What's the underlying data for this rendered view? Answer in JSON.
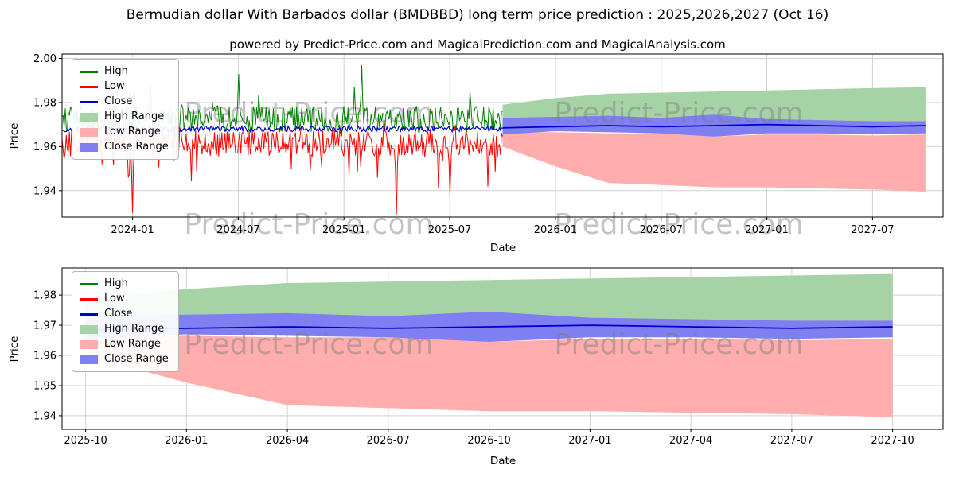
{
  "title": "Bermudian dollar With Barbados dollar (BMDBBD) long term price prediction : 2025,2026,2027 (Oct 16)",
  "subtitle": "powered by Predict-Price.com and MagicalPrediction.com and MagicalAnalysis.com",
  "watermark": "Predict-Price.com",
  "colors": {
    "high_line": "#008000",
    "low_line": "#ff0000",
    "close_line": "#0000cd",
    "high_range_fill": "#a6d3a6",
    "low_range_fill": "#ffadad",
    "close_range_fill": "#7f7ff2",
    "grid": "#d2d2d2",
    "axis": "#000000",
    "watermark_color": "rgba(125,125,125,0.45)"
  },
  "legend": {
    "items": [
      {
        "label": "High",
        "type": "line",
        "color": "#008000"
      },
      {
        "label": "Low",
        "type": "line",
        "color": "#ff0000"
      },
      {
        "label": "Close",
        "type": "line",
        "color": "#0000cd"
      },
      {
        "label": "High Range",
        "type": "patch",
        "color": "#a6d3a6"
      },
      {
        "label": "Low Range",
        "type": "patch",
        "color": "#ffadad"
      },
      {
        "label": "Close Range",
        "type": "patch",
        "color": "#7f7ff2"
      }
    ]
  },
  "chart_data": [
    {
      "type": "line",
      "title": "",
      "xlabel": "Date",
      "ylabel": "Price",
      "x_origin": "2023-09",
      "x_domain_months": [
        0,
        50
      ],
      "ylim": [
        1.928,
        2.002
      ],
      "x_ticks": [
        "2024-01",
        "2024-07",
        "2025-01",
        "2025-07",
        "2026-01",
        "2026-07",
        "2027-01",
        "2027-07"
      ],
      "y_ticks": [
        1.94,
        1.96,
        1.98,
        2.0
      ],
      "grid": true,
      "legend_position": "upper-left",
      "historical": {
        "x_start": "2023-09",
        "x_end": "2025-10",
        "samples": 420,
        "seed": 42,
        "high": {
          "mean": 1.9725,
          "noise": 0.012,
          "spike_prob": 0.07,
          "spike_amp": 0.014,
          "dip_prob": 0.04,
          "dip_amp": 0.01,
          "peaks": [
            {
              "month": "2024-02",
              "value": 1.989
            },
            {
              "month": "2024-07",
              "value": 1.993
            },
            {
              "month": "2025-02",
              "value": 1.997
            }
          ]
        },
        "low": {
          "mean": 1.9615,
          "noise": 0.012,
          "spike_prob": 0.07,
          "spike_amp": 0.018,
          "rise_prob": 0.04,
          "rise_amp": 0.008,
          "dips": [
            {
              "month": "2024-01",
              "value": 1.93
            },
            {
              "month": "2025-04",
              "value": 1.929
            },
            {
              "month": "2025-07",
              "value": 1.938
            }
          ]
        },
        "close": {
          "mean": 1.968,
          "noise": 0.0025
        }
      },
      "forecast": {
        "x": [
          "2025-10",
          "2026-01",
          "2026-04",
          "2026-07",
          "2026-10",
          "2027-01",
          "2027-04",
          "2027-07",
          "2027-10"
        ],
        "high_range": {
          "upper": [
            1.979,
            1.982,
            1.984,
            1.9845,
            1.985,
            1.9855,
            1.986,
            1.9865,
            1.987
          ],
          "lower": [
            1.9725,
            1.973,
            1.9735,
            1.973,
            1.974,
            1.9715,
            1.971,
            1.9705,
            1.971
          ]
        },
        "low_range": {
          "upper": [
            1.9665,
            1.9665,
            1.966,
            1.966,
            1.9645,
            1.9655,
            1.9655,
            1.965,
            1.9655
          ],
          "lower": [
            1.96,
            1.951,
            1.9435,
            1.9425,
            1.9415,
            1.9415,
            1.941,
            1.9405,
            1.9395
          ]
        },
        "close_range": {
          "upper": [
            1.973,
            1.9735,
            1.974,
            1.973,
            1.9745,
            1.9725,
            1.972,
            1.9715,
            1.9715
          ],
          "lower": [
            1.9655,
            1.967,
            1.9665,
            1.966,
            1.9645,
            1.966,
            1.966,
            1.9655,
            1.966
          ]
        },
        "close": [
          1.9685,
          1.969,
          1.9695,
          1.969,
          1.9695,
          1.97,
          1.9695,
          1.969,
          1.9695
        ]
      }
    },
    {
      "type": "line",
      "title": "",
      "xlabel": "Date",
      "ylabel": "Price",
      "x_origin": "2025-10",
      "x_domain_months": [
        -0.7,
        25.5
      ],
      "ylim": [
        1.9355,
        1.989
      ],
      "x_ticks": [
        "2025-10",
        "2026-01",
        "2026-04",
        "2026-07",
        "2026-10",
        "2027-01",
        "2027-04",
        "2027-07",
        "2027-10"
      ],
      "y_ticks": [
        1.94,
        1.95,
        1.96,
        1.97,
        1.98
      ],
      "grid": true,
      "legend_position": "upper-left",
      "forecast": {
        "x": [
          "2025-10",
          "2026-01",
          "2026-04",
          "2026-07",
          "2026-10",
          "2027-01",
          "2027-04",
          "2027-07",
          "2027-10"
        ],
        "high_range": {
          "upper": [
            1.979,
            1.982,
            1.984,
            1.9845,
            1.985,
            1.9855,
            1.986,
            1.9865,
            1.987
          ],
          "lower": [
            1.9725,
            1.973,
            1.9735,
            1.973,
            1.974,
            1.9715,
            1.971,
            1.9705,
            1.971
          ]
        },
        "low_range": {
          "upper": [
            1.9665,
            1.9665,
            1.966,
            1.966,
            1.9645,
            1.9655,
            1.9655,
            1.965,
            1.9655
          ],
          "lower": [
            1.96,
            1.951,
            1.9435,
            1.9425,
            1.9415,
            1.9415,
            1.941,
            1.9405,
            1.9395
          ]
        },
        "close_range": {
          "upper": [
            1.973,
            1.9735,
            1.974,
            1.973,
            1.9745,
            1.9725,
            1.972,
            1.9715,
            1.9715
          ],
          "lower": [
            1.9655,
            1.967,
            1.9665,
            1.966,
            1.9645,
            1.966,
            1.966,
            1.9655,
            1.966
          ]
        },
        "close": [
          1.9685,
          1.969,
          1.9695,
          1.969,
          1.9695,
          1.97,
          1.9695,
          1.969,
          1.9695
        ]
      }
    }
  ]
}
